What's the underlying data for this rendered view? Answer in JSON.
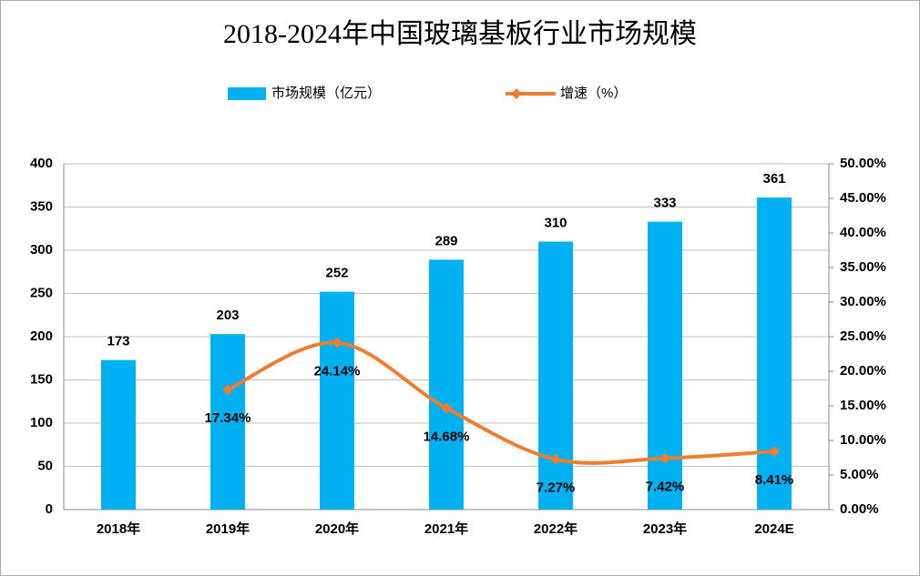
{
  "chart_data": {
    "type": "bar",
    "title": "2018-2024年中国玻璃基板行业市场规模",
    "categories": [
      "2018年",
      "2019年",
      "2020年",
      "2021年",
      "2022年",
      "2023年",
      "2024E"
    ],
    "series": [
      {
        "name": "市场规模（亿元）",
        "type": "bar",
        "color": "#00b0f0",
        "values": [
          173,
          203,
          252,
          289,
          310,
          333,
          361
        ]
      },
      {
        "name": "增速（%）",
        "type": "line",
        "axis": "y2",
        "color": "#ed7d31",
        "values": [
          null,
          17.34,
          24.14,
          14.68,
          7.27,
          7.42,
          8.41
        ],
        "value_labels": [
          null,
          "17.34%",
          "24.14%",
          "14.68%",
          "7.27%",
          "7.42%",
          "8.41%"
        ]
      }
    ],
    "ylim": [
      0,
      400
    ],
    "yticks": [
      0,
      50,
      100,
      150,
      200,
      250,
      300,
      350,
      400
    ],
    "y2lim": [
      0,
      50
    ],
    "y2ticks": [
      {
        "value": 0,
        "label": "0.00%"
      },
      {
        "value": 5,
        "label": "5.00%"
      },
      {
        "value": 10,
        "label": "10.00%"
      },
      {
        "value": 15,
        "label": "15.00%"
      },
      {
        "value": 20,
        "label": "20.00%"
      },
      {
        "value": 25,
        "label": "25.00%"
      },
      {
        "value": 30,
        "label": "30.00%"
      },
      {
        "value": 35,
        "label": "35.00%"
      },
      {
        "value": 40,
        "label": "40.00%"
      },
      {
        "value": 45,
        "label": "45.00%"
      },
      {
        "value": 50,
        "label": "50.00%"
      }
    ],
    "grid": true
  }
}
